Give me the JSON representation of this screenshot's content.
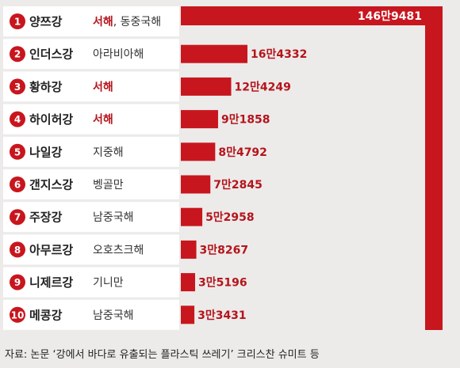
{
  "chart_data": {
    "type": "bar",
    "orientation": "horizontal",
    "rows": [
      {
        "rank": "1",
        "river": "양쯔강",
        "sea": "서해, 동중국해",
        "sea_highlight": "서해",
        "sea_rest": ", 동중국해",
        "value": 1469481,
        "value_label": "146만9481"
      },
      {
        "rank": "2",
        "river": "인더스강",
        "sea": "아라비아해",
        "sea_highlight": "",
        "sea_rest": "아라비아해",
        "value": 164332,
        "value_label": "16만4332"
      },
      {
        "rank": "3",
        "river": "황하강",
        "sea": "서해",
        "sea_highlight": "서해",
        "sea_rest": "",
        "value": 124249,
        "value_label": "12만4249"
      },
      {
        "rank": "4",
        "river": "하이허강",
        "sea": "서해",
        "sea_highlight": "서해",
        "sea_rest": "",
        "value": 91858,
        "value_label": "9만1858"
      },
      {
        "rank": "5",
        "river": "나일강",
        "sea": "지중해",
        "sea_highlight": "",
        "sea_rest": "지중해",
        "value": 84792,
        "value_label": "8만4792"
      },
      {
        "rank": "6",
        "river": "갠지스강",
        "sea": "벵골만",
        "sea_highlight": "",
        "sea_rest": "벵골만",
        "value": 72845,
        "value_label": "7만2845"
      },
      {
        "rank": "7",
        "river": "주장강",
        "sea": "남중국해",
        "sea_highlight": "",
        "sea_rest": "남중국해",
        "value": 52958,
        "value_label": "5만2958"
      },
      {
        "rank": "8",
        "river": "아무르강",
        "sea": "오호츠크해",
        "sea_highlight": "",
        "sea_rest": "오호츠크해",
        "value": 38267,
        "value_label": "3만8267"
      },
      {
        "rank": "9",
        "river": "니제르강",
        "sea": "기니만",
        "sea_highlight": "",
        "sea_rest": "기니만",
        "value": 35196,
        "value_label": "3만5196"
      },
      {
        "rank": "10",
        "river": "메콩강",
        "sea": "남중국해",
        "sea_highlight": "",
        "sea_rest": "남중국해",
        "value": 33431,
        "value_label": "3만3431"
      }
    ],
    "source": "자료: 논문 ‘강에서 바다로 유출되는 플라스틱 쓰레기’ 크리스찬 슈미트 등",
    "colors": {
      "bar": "#c8161e",
      "badge": "#c8161e",
      "accent_text": "#b5141b",
      "background": "#ecebea",
      "row_background": "#ffffff"
    }
  }
}
